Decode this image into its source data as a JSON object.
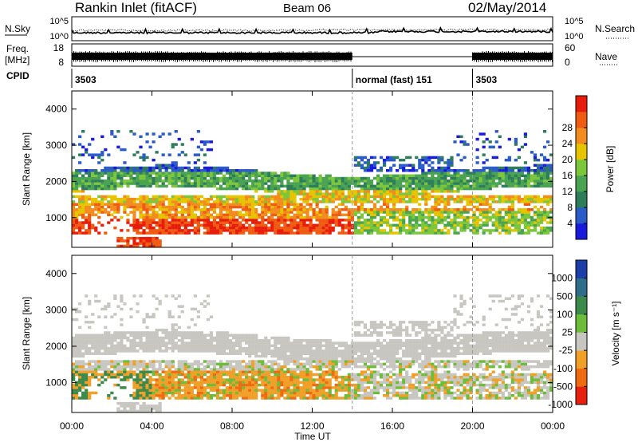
{
  "header": {
    "title": "Rankin Inlet (fitACF)",
    "beam": "Beam 06",
    "date": "02/May/2014"
  },
  "noise_panel": {
    "left_label": "N.Sky",
    "right_label": "N.Search",
    "y_ticks_left": [
      "10^5",
      "10^0"
    ],
    "y_ticks_right": [
      "10^5",
      "10^0"
    ]
  },
  "freq_panel": {
    "left_label": "Freq.",
    "left_unit": "[MHz]",
    "right_label": "Nave",
    "y_ticks_left": [
      "18",
      "8"
    ],
    "y_ticks_right": [
      "60",
      "0"
    ]
  },
  "cpid": {
    "label": "CPID",
    "segments": [
      {
        "start_h": 0,
        "end_h": 14,
        "label": "3503"
      },
      {
        "start_h": 14,
        "end_h": 20,
        "label": "normal (fast) 151"
      },
      {
        "start_h": 20,
        "end_h": 24,
        "label": "3503"
      }
    ]
  },
  "x_axis": {
    "label": "Time UT",
    "ticks": [
      "00:00",
      "04:00",
      "08:00",
      "12:00",
      "16:00",
      "20:00",
      "00:00"
    ],
    "range_hours": [
      0,
      24
    ]
  },
  "chart_data": [
    {
      "type": "heatmap",
      "ylabel": "Slant Range [km]",
      "yticks": [
        1000,
        2000,
        3000,
        4000
      ],
      "ylim": [
        180,
        4500
      ],
      "xlim": [
        0,
        24
      ],
      "colorbar": {
        "label": "Power [dB]",
        "ticks": [
          "4",
          "8",
          "12",
          "16",
          "20",
          "24",
          "28"
        ],
        "colors": [
          "#1a1adc",
          "#2a5bc8",
          "#2e7d5a",
          "#49a350",
          "#7cc63c",
          "#e6c400",
          "#f28c1e",
          "#ef5b12",
          "#e81c0a"
        ]
      }
    },
    {
      "type": "heatmap",
      "ylabel": "Slant Range [km]",
      "yticks": [
        1000,
        2000,
        3000,
        4000
      ],
      "ylim": [
        180,
        4500
      ],
      "xlim": [
        0,
        24
      ],
      "colorbar": {
        "label": "Velocity [m s⁻¹]",
        "ticks": [
          "1000",
          "500",
          "100",
          "25",
          "-25",
          "-100",
          "-500",
          "-1000"
        ],
        "colors": [
          "#1c3ea8",
          "#2e6e8a",
          "#3c8a4a",
          "#6dbd3a",
          "#c8c6c0",
          "#f0a028",
          "#ef6a10",
          "#e82010"
        ]
      }
    }
  ]
}
